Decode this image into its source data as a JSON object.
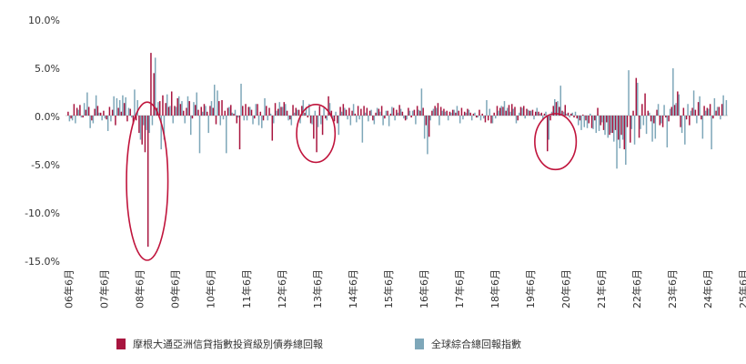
{
  "chart_data": {
    "type": "bar",
    "ylim": [
      -15,
      10
    ],
    "y_ticks": [
      "10.0%",
      "5.0%",
      "0.0%",
      "-5.0%",
      "-10.0%",
      "-15.0%"
    ],
    "y_tick_values": [
      10,
      5,
      0,
      -5,
      -10,
      -15
    ],
    "x_tick_labels": [
      "06年6月",
      "07年6月",
      "08年6月",
      "09年6月",
      "10年6月",
      "11年6月",
      "12年6月",
      "13年6月",
      "14年6月",
      "15年6月",
      "16年6月",
      "17年6月",
      "18年6月",
      "19年6月",
      "20年6月",
      "21年6月",
      "22年6月",
      "23年6月",
      "24年6月",
      "25年6月"
    ],
    "x_tick_months": [
      0,
      12,
      24,
      36,
      48,
      60,
      72,
      84,
      96,
      108,
      120,
      132,
      144,
      156,
      168,
      180,
      192,
      204,
      216,
      228
    ],
    "grid": false,
    "legend_position": "bottom",
    "colors": {
      "series1": "#a8153f",
      "series2": "#7ea7b9"
    },
    "annotations": [
      {
        "shape": "ellipse",
        "center_month": 26.5,
        "center_value": -6.8,
        "half_width_months": 7,
        "half_height_value": 8.2
      },
      {
        "shape": "ellipse",
        "center_month": 83.5,
        "center_value": -1.85,
        "half_width_months": 6.5,
        "half_height_value": 3.0
      },
      {
        "shape": "ellipse",
        "center_month": 164.5,
        "center_value": -2.7,
        "half_width_months": 7,
        "half_height_value": 2.9
      }
    ],
    "series": [
      {
        "name": "摩根大通亞洲信貸指數投資級別債券總回報",
        "color": "#a8153f",
        "values": [
          0.4,
          -0.3,
          1.2,
          0.8,
          1.1,
          -0.2,
          0.6,
          0.9,
          -0.5,
          0.7,
          1.0,
          0.3,
          0.5,
          -0.4,
          0.9,
          0.6,
          -1.0,
          0.8,
          0.4,
          1.3,
          -0.6,
          0.7,
          -0.9,
          -0.5,
          -1.8,
          -3.0,
          -3.8,
          -13.6,
          6.5,
          4.4,
          0.8,
          1.5,
          2.1,
          1.3,
          0.9,
          2.5,
          1.0,
          1.8,
          1.2,
          0.5,
          0.8,
          1.5,
          -0.3,
          1.1,
          0.6,
          0.9,
          1.2,
          0.4,
          1.0,
          0.8,
          -0.9,
          1.5,
          1.6,
          0.5,
          0.8,
          1.1,
          0.2,
          -0.8,
          -3.5,
          1.0,
          1.2,
          0.9,
          0.6,
          -0.3,
          1.2,
          0.4,
          -0.5,
          1.0,
          0.8,
          -2.6,
          1.3,
          0.7,
          0.9,
          1.4,
          0.5,
          -0.4,
          1.1,
          0.8,
          0.6,
          1.0,
          0.3,
          -0.2,
          -0.8,
          -2.4,
          -3.8,
          1.0,
          -2.0,
          -0.3,
          2.0,
          0.5,
          -0.6,
          -0.8,
          0.9,
          1.2,
          0.6,
          0.8,
          0.5,
          0.2,
          1.0,
          0.7,
          1.0,
          0.8,
          0.5,
          -0.5,
          0.3,
          0.7,
          1.0,
          -0.3,
          0.5,
          0.2,
          0.8,
          0.6,
          1.1,
          0.4,
          -0.5,
          0.8,
          -0.2,
          0.6,
          1.0,
          0.5,
          0.8,
          -1.0,
          -2.2,
          0.5,
          1.0,
          1.3,
          0.9,
          0.7,
          0.5,
          0.4,
          0.6,
          0.3,
          0.5,
          0.8,
          0.4,
          0.7,
          0.3,
          0.2,
          -0.2,
          0.6,
          0.2,
          -0.7,
          -0.5,
          -0.8,
          0.3,
          1.0,
          0.8,
          0.9,
          0.5,
          1.1,
          1.2,
          0.9,
          -0.5,
          0.9,
          1.0,
          0.7,
          0.5,
          0.6,
          0.4,
          0.4,
          0.3,
          0.2,
          -3.7,
          -0.5,
          1.0,
          1.4,
          0.9,
          0.5,
          1.1,
          0.3,
          0.2,
          -0.2,
          -0.3,
          -0.5,
          0.1,
          -0.5,
          -0.8,
          -1.3,
          -0.5,
          0.8,
          -1.0,
          -1.5,
          -0.7,
          -2.0,
          -1.8,
          -1.5,
          -2.5,
          -2.0,
          -3.5,
          -1.2,
          -2.8,
          0.5,
          3.9,
          -2.3,
          1.2,
          2.3,
          0.5,
          -0.6,
          -0.8,
          0.6,
          -1.0,
          -1.2,
          -0.2,
          -0.6,
          0.9,
          1.1,
          2.5,
          -1.2,
          0.8,
          -0.4,
          -1.0,
          0.8,
          0.6,
          1.4,
          -0.4,
          1.0,
          0.8,
          1.2,
          -0.3,
          0.5,
          0.9,
          1.2
        ]
      },
      {
        "name": "全球綜合總回報指數",
        "color": "#7ea7b9",
        "values": [
          -0.6,
          -0.5,
          -0.8,
          0.6,
          -0.2,
          1.3,
          2.4,
          -1.3,
          -0.8,
          2.1,
          0.3,
          -0.5,
          -0.3,
          -1.6,
          -0.6,
          2.0,
          1.8,
          1.6,
          2.1,
          1.9,
          0.8,
          -0.2,
          2.7,
          1.6,
          -2.5,
          -1.0,
          -1.5,
          -1.8,
          -1.0,
          6.0,
          1.4,
          -3.5,
          -2.5,
          2.2,
          1.0,
          -0.8,
          0.9,
          2.0,
          1.5,
          -0.8,
          2.0,
          -2.0,
          1.4,
          2.4,
          -3.9,
          0.4,
          1.0,
          -1.8,
          1.5,
          3.2,
          2.6,
          -1.0,
          -0.4,
          -3.9,
          0.9,
          0.3,
          0.6,
          -0.2,
          3.3,
          -0.5,
          -0.5,
          0.9,
          -0.9,
          1.2,
          -1.0,
          -1.3,
          1.8,
          -0.5,
          0.2,
          -0.8,
          0.5,
          1.4,
          0.9,
          1.2,
          -0.5,
          -1.0,
          0.3,
          0.6,
          -0.8,
          1.6,
          0.9,
          1.2,
          -0.9,
          0.5,
          -1.2,
          -0.9,
          0.8,
          -0.5,
          1.3,
          -0.5,
          0.4,
          -2.0,
          0.4,
          0.8,
          -0.4,
          -1.0,
          1.2,
          -0.7,
          -0.4,
          -2.8,
          0.3,
          -0.6,
          0.6,
          -0.9,
          0.8,
          0.4,
          -1.0,
          0.5,
          -1.1,
          0.9,
          -0.5,
          0.3,
          0.7,
          -0.3,
          -0.4,
          0.5,
          0.5,
          -0.9,
          0.6,
          2.8,
          -2.4,
          -4.0,
          -0.5,
          0.7,
          0.8,
          -1.0,
          0.5,
          0.4,
          -0.5,
          0.3,
          0.6,
          1.0,
          -0.8,
          -0.4,
          0.3,
          0.6,
          -0.5,
          0.3,
          -0.2,
          -0.5,
          -0.3,
          1.6,
          0.7,
          -0.8,
          -0.3,
          0.5,
          1.0,
          1.5,
          0.8,
          0.4,
          0.7,
          -0.8,
          0.3,
          0.8,
          -0.3,
          0.6,
          0.5,
          -0.4,
          0.8,
          0.2,
          -0.5,
          0.4,
          -2.5,
          0.4,
          1.7,
          1.5,
          3.1,
          0.4,
          0.2,
          -0.2,
          0.3,
          0.4,
          -1.0,
          -1.5,
          -1.2,
          -1.3,
          0.2,
          -1.4,
          -1.8,
          -1.6,
          -0.7,
          -2.0,
          -2.3,
          -1.8,
          -2.7,
          -5.5,
          -3.4,
          -2.5,
          -5.1,
          4.7,
          -1.4,
          -3.0,
          3.4,
          -1.4,
          -1.0,
          -1.9,
          0.3,
          -2.7,
          -2.4,
          1.2,
          -0.8,
          1.1,
          -3.3,
          0.7,
          4.9,
          1.3,
          2.2,
          -1.8,
          -3.0,
          1.2,
          0.5,
          2.6,
          -0.8,
          2.0,
          -2.4,
          0.5,
          0.7,
          -3.5,
          1.8,
          0.9,
          -0.4,
          2.1,
          1.6
        ]
      }
    ]
  }
}
